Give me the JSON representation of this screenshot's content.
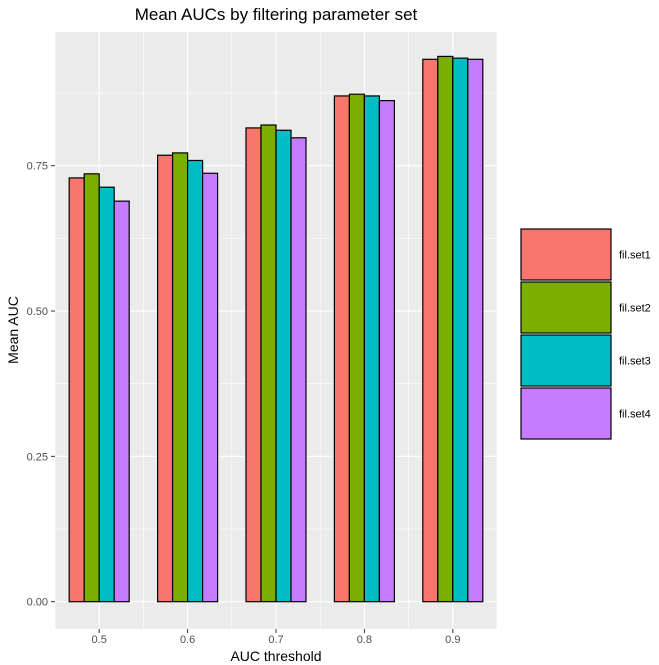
{
  "chart_data": {
    "type": "bar",
    "title": "Mean AUCs by filtering parameter set",
    "xlabel": "AUC threshold",
    "ylabel": "Mean AUC",
    "categories": [
      "0.5",
      "0.6",
      "0.7",
      "0.8",
      "0.9"
    ],
    "ylim": [
      -0.047,
      0.98
    ],
    "yticks": [
      "0.00",
      "0.25",
      "0.50",
      "0.75"
    ],
    "grid": true,
    "legend_position": "right",
    "series": [
      {
        "name": "fil.set1",
        "color": "#F8766D",
        "values": [
          0.729,
          0.768,
          0.815,
          0.87,
          0.933
        ]
      },
      {
        "name": "fil.set2",
        "color": "#7CAE00",
        "values": [
          0.736,
          0.772,
          0.82,
          0.873,
          0.938
        ]
      },
      {
        "name": "fil.set3",
        "color": "#00BFC4",
        "values": [
          0.713,
          0.759,
          0.811,
          0.87,
          0.935
        ]
      },
      {
        "name": "fil.set4",
        "color": "#C77CFF",
        "values": [
          0.689,
          0.737,
          0.798,
          0.862,
          0.933
        ]
      }
    ]
  }
}
